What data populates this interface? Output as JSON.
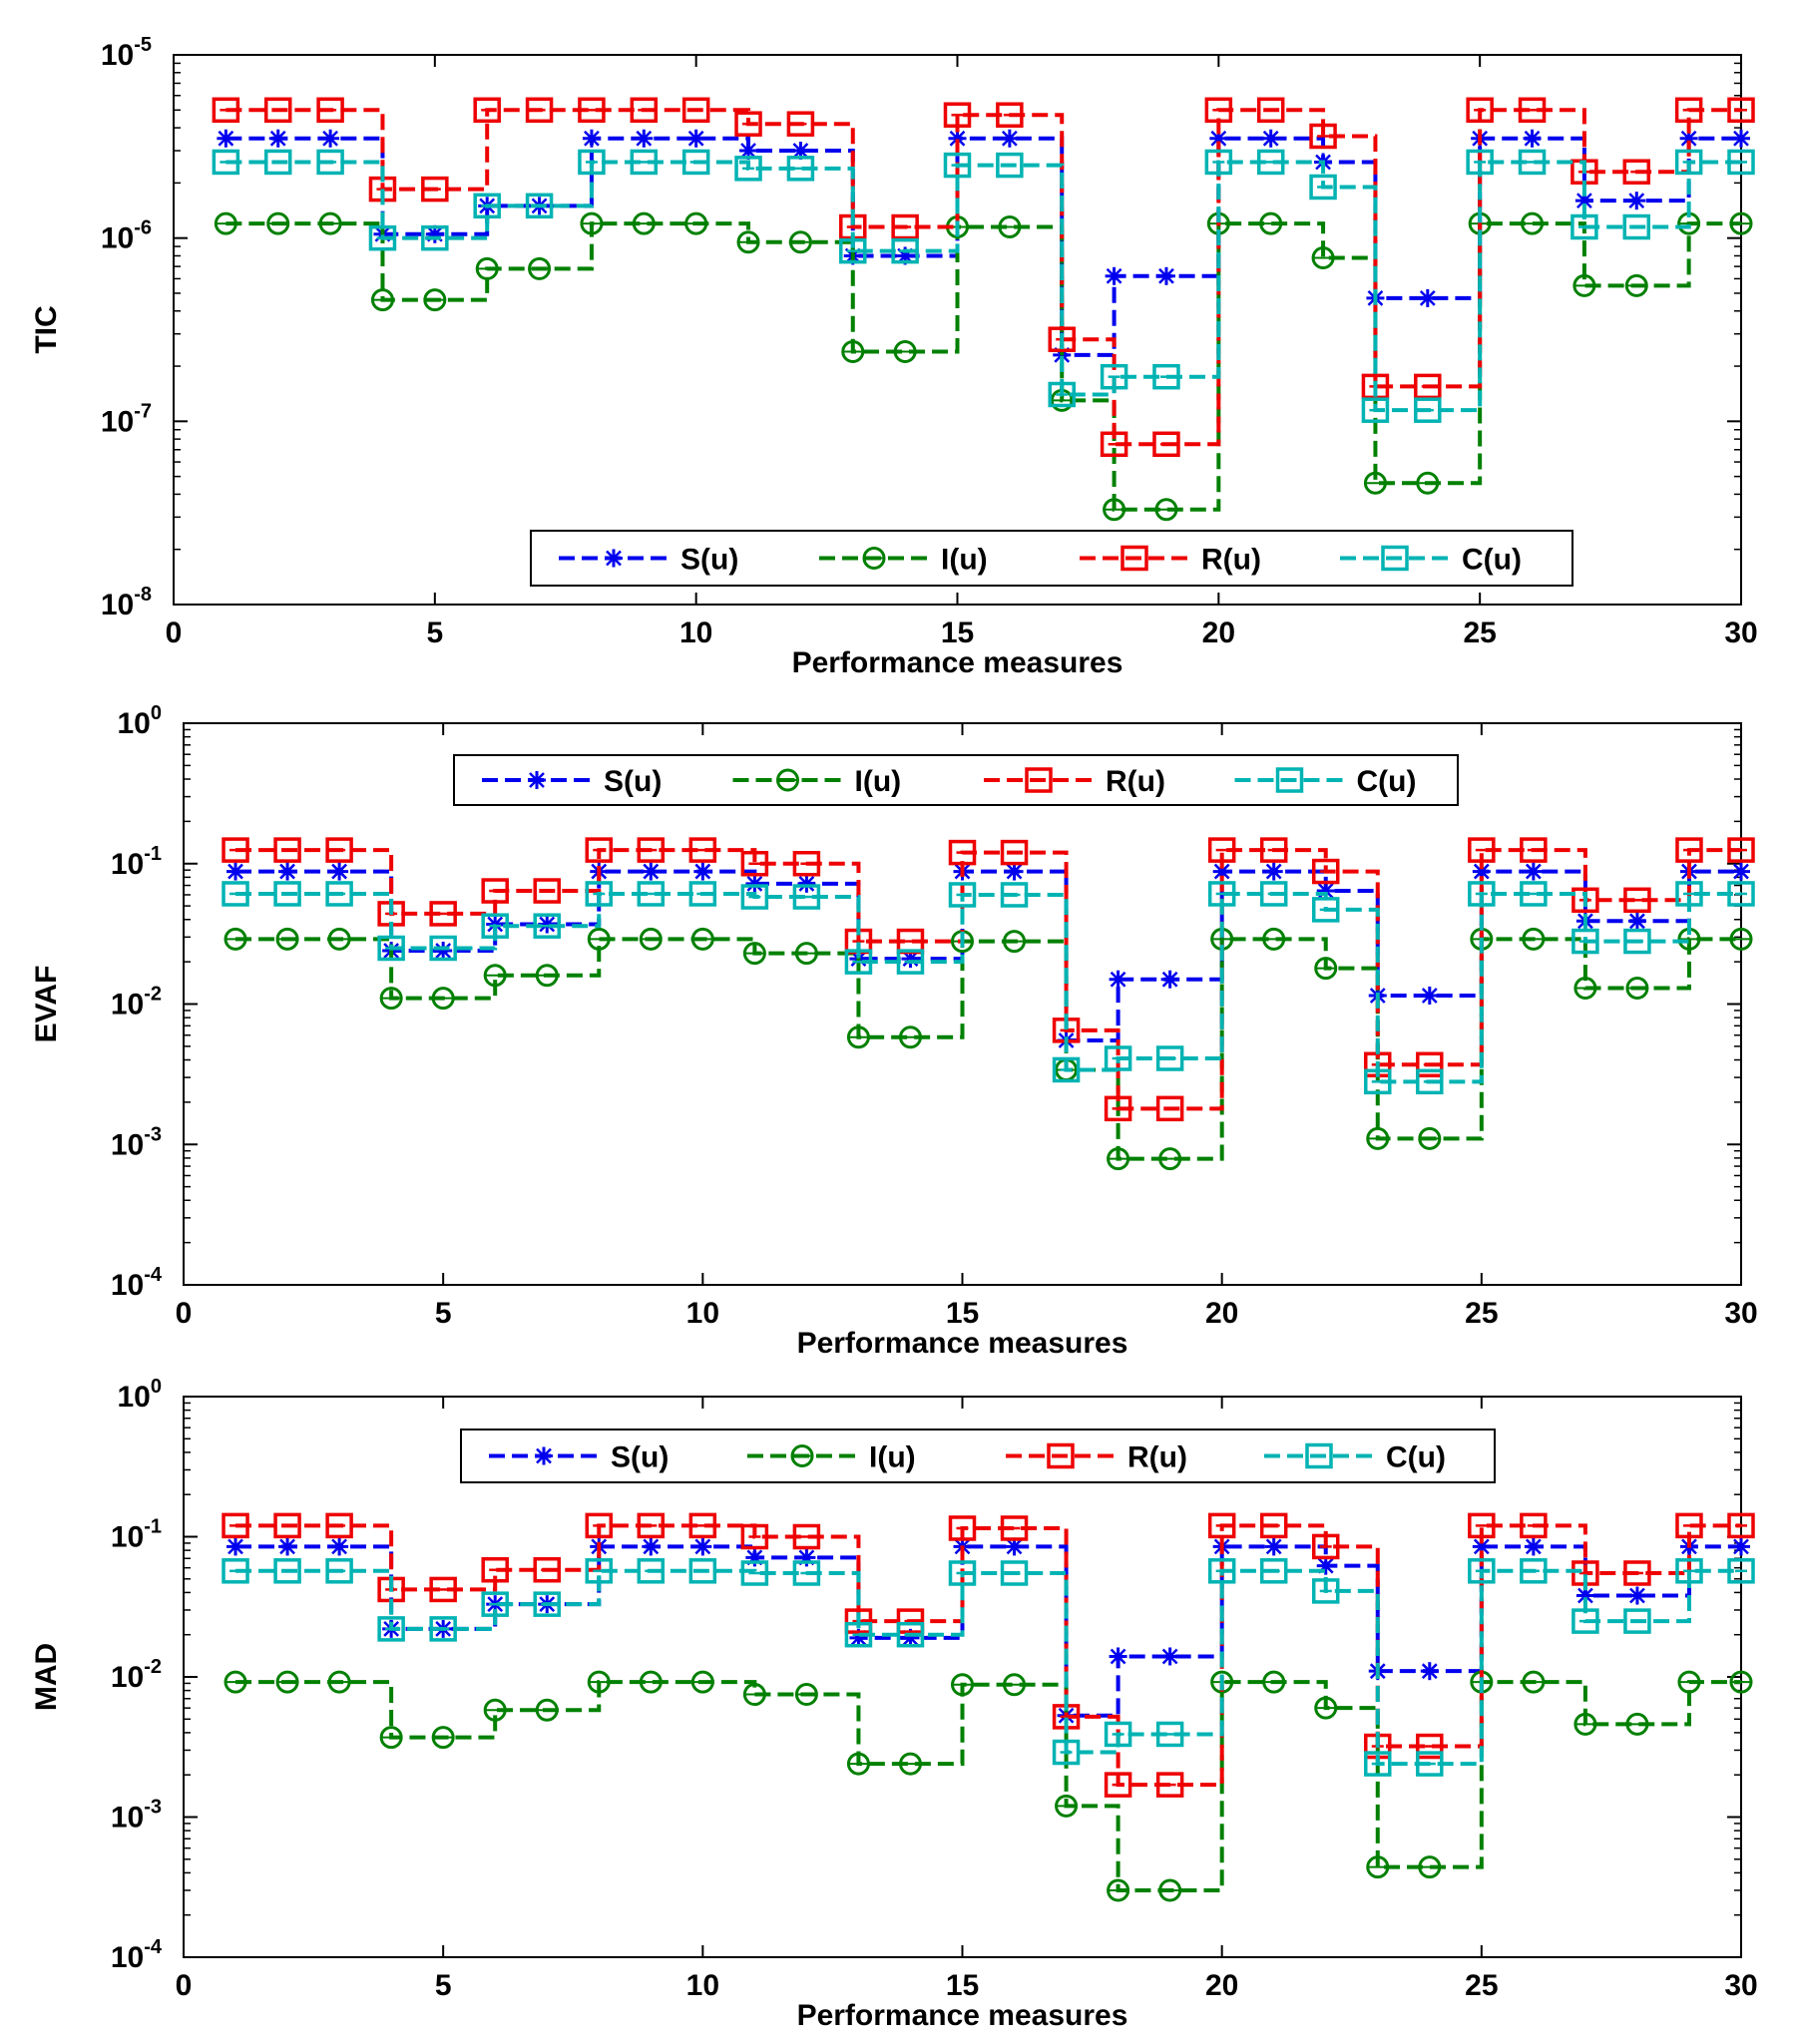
{
  "figure": {
    "x_label": "Performance measures"
  },
  "legend_labels": [
    "S(u)",
    "I(u)",
    "R(u)",
    "C(u)"
  ],
  "series_style": [
    {
      "name": "S(u)",
      "color": "#0000ee",
      "marker": "star"
    },
    {
      "name": "I(u)",
      "color": "#008000",
      "marker": "circle"
    },
    {
      "name": "R(u)",
      "color": "#ee0000",
      "marker": "square"
    },
    {
      "name": "C(u)",
      "color": "#00b3b3",
      "marker": "square"
    }
  ],
  "chart_data": [
    {
      "type": "line",
      "ylabel": "TIC",
      "xlabel": "Performance measures",
      "xlim": [
        0,
        30
      ],
      "xticks": [
        "0",
        "5",
        "10",
        "15",
        "20",
        "25",
        "30"
      ],
      "y_scale": "log",
      "ylim": [
        1e-08,
        1e-05
      ],
      "ytick_exponents": [
        "-8",
        "-7",
        "-6",
        "-5"
      ],
      "legend_position": "bottom-right",
      "x": [
        1,
        2,
        3,
        4,
        5,
        6,
        7,
        8,
        9,
        10,
        11,
        12,
        13,
        14,
        15,
        16,
        17,
        18,
        19,
        20,
        21,
        22,
        23,
        24,
        25,
        26,
        27,
        28,
        29,
        30
      ],
      "series": [
        {
          "name": "S(u)",
          "values": [
            3.5e-06,
            3.5e-06,
            3.5e-06,
            1.05e-06,
            1.05e-06,
            1.5e-06,
            1.5e-06,
            3.5e-06,
            3.5e-06,
            3.5e-06,
            3e-06,
            3e-06,
            8e-07,
            8e-07,
            3.5e-06,
            3.5e-06,
            2.3e-07,
            6.2e-07,
            6.2e-07,
            3.5e-06,
            3.5e-06,
            2.6e-06,
            4.7e-07,
            4.7e-07,
            3.5e-06,
            3.5e-06,
            1.6e-06,
            1.6e-06,
            3.5e-06,
            3.5e-06
          ]
        },
        {
          "name": "I(u)",
          "values": [
            1.2e-06,
            1.2e-06,
            1.2e-06,
            4.6e-07,
            4.6e-07,
            6.8e-07,
            6.8e-07,
            1.2e-06,
            1.2e-06,
            1.2e-06,
            9.5e-07,
            9.5e-07,
            2.4e-07,
            2.4e-07,
            1.15e-06,
            1.15e-06,
            1.3e-07,
            3.3e-08,
            3.3e-08,
            1.2e-06,
            1.2e-06,
            7.8e-07,
            4.6e-08,
            4.6e-08,
            1.2e-06,
            1.2e-06,
            5.5e-07,
            5.5e-07,
            1.2e-06,
            1.2e-06
          ]
        },
        {
          "name": "R(u)",
          "values": [
            5e-06,
            5e-06,
            5e-06,
            1.85e-06,
            1.85e-06,
            5e-06,
            5e-06,
            5e-06,
            5e-06,
            5e-06,
            4.2e-06,
            4.2e-06,
            1.15e-06,
            1.15e-06,
            4.7e-06,
            4.7e-06,
            2.8e-07,
            7.5e-08,
            7.5e-08,
            5e-06,
            5e-06,
            3.6e-06,
            1.55e-07,
            1.55e-07,
            5e-06,
            5e-06,
            2.3e-06,
            2.3e-06,
            5e-06,
            5e-06
          ]
        },
        {
          "name": "C(u)",
          "values": [
            2.6e-06,
            2.6e-06,
            2.6e-06,
            1e-06,
            1e-06,
            1.5e-06,
            1.5e-06,
            2.6e-06,
            2.6e-06,
            2.6e-06,
            2.4e-06,
            2.4e-06,
            8.5e-07,
            8.5e-07,
            2.5e-06,
            2.5e-06,
            1.4e-07,
            1.75e-07,
            1.75e-07,
            2.6e-06,
            2.6e-06,
            1.9e-06,
            1.15e-07,
            1.15e-07,
            2.6e-06,
            2.6e-06,
            1.15e-06,
            1.15e-06,
            2.6e-06,
            2.6e-06
          ]
        }
      ]
    },
    {
      "type": "line",
      "ylabel": "EVAF",
      "xlabel": "Performance measures",
      "xlim": [
        0,
        30
      ],
      "xticks": [
        "0",
        "5",
        "10",
        "15",
        "20",
        "25",
        "30"
      ],
      "y_scale": "log",
      "ylim": [
        0.0001,
        1
      ],
      "ytick_exponents": [
        "-4",
        "-3",
        "-2",
        "-1",
        "0"
      ],
      "legend_position": "top-center",
      "x": [
        1,
        2,
        3,
        4,
        5,
        6,
        7,
        8,
        9,
        10,
        11,
        12,
        13,
        14,
        15,
        16,
        17,
        18,
        19,
        20,
        21,
        22,
        23,
        24,
        25,
        26,
        27,
        28,
        29,
        30
      ],
      "series": [
        {
          "name": "S(u)",
          "values": [
            0.088,
            0.088,
            0.088,
            0.024,
            0.024,
            0.037,
            0.037,
            0.088,
            0.088,
            0.088,
            0.072,
            0.072,
            0.021,
            0.021,
            0.088,
            0.088,
            0.0055,
            0.015,
            0.015,
            0.088,
            0.088,
            0.064,
            0.0115,
            0.0115,
            0.088,
            0.088,
            0.039,
            0.039,
            0.088,
            0.088
          ]
        },
        {
          "name": "I(u)",
          "values": [
            0.029,
            0.029,
            0.029,
            0.011,
            0.011,
            0.016,
            0.016,
            0.029,
            0.029,
            0.029,
            0.023,
            0.023,
            0.0058,
            0.0058,
            0.028,
            0.028,
            0.0034,
            0.00079,
            0.00079,
            0.029,
            0.029,
            0.018,
            0.0011,
            0.0011,
            0.029,
            0.029,
            0.013,
            0.013,
            0.029,
            0.029
          ]
        },
        {
          "name": "R(u)",
          "values": [
            0.125,
            0.125,
            0.125,
            0.044,
            0.044,
            0.064,
            0.064,
            0.125,
            0.125,
            0.125,
            0.1,
            0.1,
            0.028,
            0.028,
            0.12,
            0.12,
            0.0065,
            0.0018,
            0.0018,
            0.125,
            0.125,
            0.088,
            0.0037,
            0.0037,
            0.125,
            0.125,
            0.055,
            0.055,
            0.125,
            0.125
          ]
        },
        {
          "name": "C(u)",
          "values": [
            0.061,
            0.061,
            0.061,
            0.025,
            0.025,
            0.036,
            0.036,
            0.061,
            0.061,
            0.061,
            0.058,
            0.058,
            0.02,
            0.02,
            0.06,
            0.06,
            0.0034,
            0.0041,
            0.0041,
            0.061,
            0.061,
            0.047,
            0.0028,
            0.0028,
            0.061,
            0.061,
            0.028,
            0.028,
            0.061,
            0.061
          ]
        }
      ]
    },
    {
      "type": "line",
      "ylabel": "MAD",
      "xlabel": "Performance measures",
      "xlim": [
        0,
        30
      ],
      "xticks": [
        "0",
        "5",
        "10",
        "15",
        "20",
        "25",
        "30"
      ],
      "y_scale": "log",
      "ylim": [
        0.0001,
        1
      ],
      "ytick_exponents": [
        "-4",
        "-3",
        "-2",
        "-1",
        "0"
      ],
      "legend_position": "top-center",
      "x": [
        1,
        2,
        3,
        4,
        5,
        6,
        7,
        8,
        9,
        10,
        11,
        12,
        13,
        14,
        15,
        16,
        17,
        18,
        19,
        20,
        21,
        22,
        23,
        24,
        25,
        26,
        27,
        28,
        29,
        30
      ],
      "series": [
        {
          "name": "S(u)",
          "values": [
            0.085,
            0.085,
            0.085,
            0.022,
            0.022,
            0.033,
            0.033,
            0.085,
            0.085,
            0.085,
            0.071,
            0.071,
            0.019,
            0.019,
            0.085,
            0.085,
            0.0053,
            0.014,
            0.014,
            0.085,
            0.085,
            0.062,
            0.011,
            0.011,
            0.085,
            0.085,
            0.038,
            0.038,
            0.085,
            0.085
          ]
        },
        {
          "name": "I(u)",
          "values": [
            0.0092,
            0.0092,
            0.0092,
            0.0037,
            0.0037,
            0.0058,
            0.0058,
            0.0092,
            0.0092,
            0.0092,
            0.0075,
            0.0075,
            0.0024,
            0.0024,
            0.0088,
            0.0088,
            0.0012,
            0.0003,
            0.0003,
            0.0092,
            0.0092,
            0.006,
            0.00044,
            0.00044,
            0.0092,
            0.0092,
            0.0046,
            0.0046,
            0.0092,
            0.0092
          ]
        },
        {
          "name": "R(u)",
          "values": [
            0.12,
            0.12,
            0.12,
            0.042,
            0.042,
            0.058,
            0.058,
            0.12,
            0.12,
            0.12,
            0.1,
            0.1,
            0.025,
            0.025,
            0.115,
            0.115,
            0.0052,
            0.0017,
            0.0017,
            0.12,
            0.12,
            0.085,
            0.0032,
            0.0032,
            0.12,
            0.12,
            0.055,
            0.055,
            0.12,
            0.12
          ]
        },
        {
          "name": "C(u)",
          "values": [
            0.057,
            0.057,
            0.057,
            0.022,
            0.022,
            0.033,
            0.033,
            0.057,
            0.057,
            0.057,
            0.055,
            0.055,
            0.02,
            0.02,
            0.055,
            0.055,
            0.0029,
            0.0039,
            0.0039,
            0.057,
            0.057,
            0.041,
            0.0024,
            0.0024,
            0.057,
            0.057,
            0.025,
            0.025,
            0.057,
            0.057
          ]
        }
      ]
    }
  ]
}
